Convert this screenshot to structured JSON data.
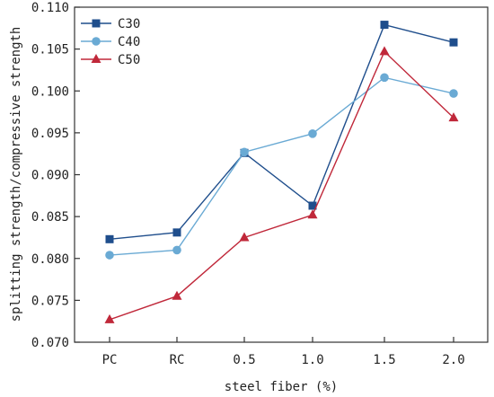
{
  "chart_data": {
    "type": "line",
    "categories": [
      "PC",
      "RC",
      "0.5",
      "1.0",
      "1.5",
      "2.0"
    ],
    "xlabel": "steel fiber (%)",
    "ylabel": "splitting strength/compressive strength",
    "ylim": [
      0.07,
      0.11
    ],
    "yticks": [
      "0.070",
      "0.075",
      "0.080",
      "0.085",
      "0.090",
      "0.095",
      "0.100",
      "0.105",
      "0.110"
    ],
    "grid": false,
    "legend_position": "top-left",
    "series": [
      {
        "name": "C30",
        "color": "#1f4e8c",
        "marker": "square",
        "values": [
          0.0823,
          0.0831,
          0.0926,
          0.0863,
          0.1079,
          0.1058
        ]
      },
      {
        "name": "C40",
        "color": "#6aaad4",
        "marker": "circle",
        "values": [
          0.0804,
          0.081,
          0.0927,
          0.0949,
          0.1016,
          0.0997
        ]
      },
      {
        "name": "C50",
        "color": "#c0283a",
        "marker": "triangle",
        "values": [
          0.0727,
          0.0755,
          0.0825,
          0.0852,
          0.1047,
          0.0968
        ]
      }
    ]
  }
}
